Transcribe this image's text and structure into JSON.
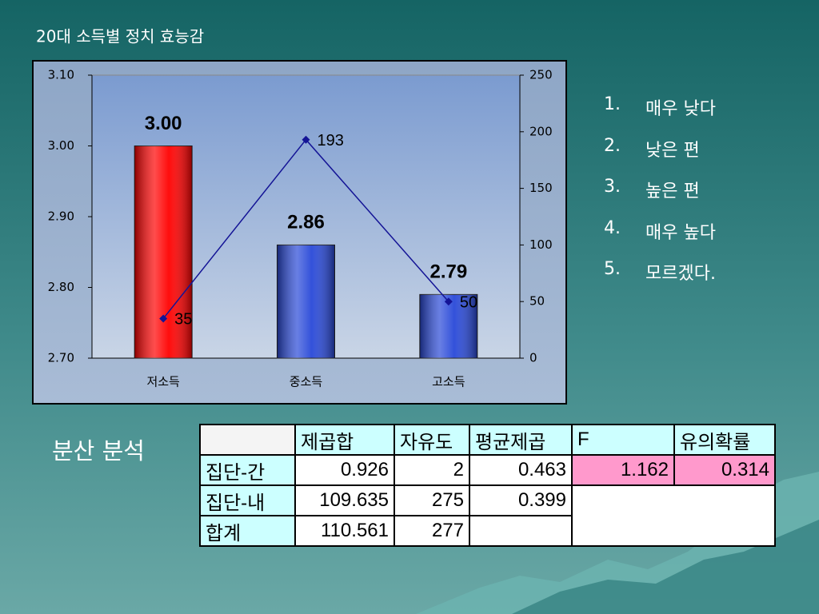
{
  "chart_data": {
    "type": "bar",
    "title": "20대 소득별 정치 효능감",
    "categories": [
      "저소득",
      "중소득",
      "고소득"
    ],
    "series": [
      {
        "type": "bar",
        "colors": [
          "#ff0000",
          "#2848d8",
          "#2848d8"
        ],
        "values": [
          3.0,
          2.86,
          2.79
        ],
        "value_labels": [
          "3.00",
          "2.86",
          "2.79"
        ]
      },
      {
        "type": "line",
        "axis": "y2",
        "color": "#141496",
        "values": [
          35,
          193,
          50
        ]
      }
    ],
    "ylim": [
      2.7,
      3.1
    ],
    "yticks": [
      {
        "value": 2.7,
        "label": "2.70"
      },
      {
        "value": 2.8,
        "label": "2.80"
      },
      {
        "value": 2.9,
        "label": "2.90"
      },
      {
        "value": 3.0,
        "label": "3.00"
      },
      {
        "value": 3.1,
        "label": "3.10"
      }
    ],
    "y2lim": [
      0,
      250
    ],
    "y2ticks": [
      0,
      50,
      100,
      150,
      200,
      250
    ]
  },
  "list": {
    "items": [
      {
        "number": "1.",
        "text": "매우 낮다"
      },
      {
        "number": "2.",
        "text": "낮은  편"
      },
      {
        "number": "3.",
        "text": "높은  편"
      },
      {
        "number": "4.",
        "text": "매우  높다"
      },
      {
        "number": "5.",
        "text": "모르겠다."
      }
    ]
  },
  "anova": {
    "title": "분산 분석",
    "header": [
      "제곱합",
      "자유도",
      "평균제곱",
      "F",
      "유의확률"
    ],
    "rows": [
      {
        "label": "집단-간",
        "cells": [
          "0.926",
          "2",
          "0.463",
          "1.162",
          "0.314"
        ]
      },
      {
        "label": "집단-내",
        "cells": [
          "109.635",
          "275",
          "0.399"
        ]
      },
      {
        "label": "합계",
        "cells": [
          "110.561",
          "277"
        ]
      }
    ]
  }
}
